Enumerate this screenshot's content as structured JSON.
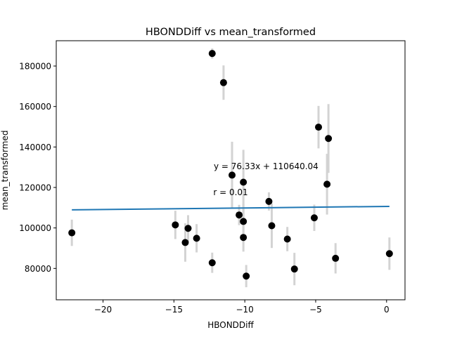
{
  "chart_data": {
    "type": "scatter",
    "title": "HBONDDiff vs mean_transformed",
    "xlabel": "HBONDDiff",
    "ylabel": "mean_transformed",
    "xlim": [
      -23.3,
      1.3
    ],
    "ylim": [
      64500,
      192500
    ],
    "xticks": [
      -20,
      -15,
      -10,
      -5,
      0
    ],
    "xtick_labels": [
      "−20",
      "−15",
      "−10",
      "−5",
      "0"
    ],
    "yticks": [
      80000,
      100000,
      120000,
      140000,
      160000,
      180000
    ],
    "ytick_labels": [
      "80000",
      "100000",
      "120000",
      "140000",
      "160000",
      "180000"
    ],
    "grid": false,
    "points": [
      {
        "x": -22.2,
        "y": 97600,
        "err": 6500
      },
      {
        "x": -14.9,
        "y": 101500,
        "err": 7000
      },
      {
        "x": -14.2,
        "y": 92800,
        "err": 9500
      },
      {
        "x": -14.0,
        "y": 99800,
        "err": 6500
      },
      {
        "x": -13.4,
        "y": 94900,
        "err": 7000
      },
      {
        "x": -12.3,
        "y": 186200,
        "err": 2500
      },
      {
        "x": -12.3,
        "y": 82800,
        "err": 5000
      },
      {
        "x": -11.5,
        "y": 171800,
        "err": 8500
      },
      {
        "x": -10.9,
        "y": 126100,
        "err": 16500
      },
      {
        "x": -10.4,
        "y": 106400,
        "err": 5000
      },
      {
        "x": -10.1,
        "y": 122600,
        "err": 16000
      },
      {
        "x": -10.1,
        "y": 103200,
        "err": 8500
      },
      {
        "x": -10.1,
        "y": 95300,
        "err": 7000
      },
      {
        "x": -9.9,
        "y": 76200,
        "err": 5500
      },
      {
        "x": -8.3,
        "y": 113100,
        "err": 4500
      },
      {
        "x": -8.1,
        "y": 101100,
        "err": 11000
      },
      {
        "x": -7.0,
        "y": 94500,
        "err": 6000
      },
      {
        "x": -6.5,
        "y": 79700,
        "err": 8000
      },
      {
        "x": -5.1,
        "y": 105000,
        "err": 6500
      },
      {
        "x": -4.8,
        "y": 149800,
        "err": 10500
      },
      {
        "x": -4.2,
        "y": 121600,
        "err": 15000
      },
      {
        "x": -4.1,
        "y": 144200,
        "err": 17000
      },
      {
        "x": -3.6,
        "y": 85000,
        "err": 7500
      },
      {
        "x": 0.2,
        "y": 87300,
        "err": 8000
      }
    ],
    "fit_line": {
      "slope": 76.33,
      "intercept": 110640.04,
      "x_range": [
        -22.2,
        0.2
      ]
    },
    "annotations": [
      {
        "text": "y = 76.33x + 110640.04",
        "x": -8.5,
        "y": 129000
      },
      {
        "text": "r = 0.01",
        "x": -11.0,
        "y": 116200
      }
    ],
    "colors": {
      "points": "#000000",
      "errorbars": "#d3d3d3",
      "fit_line": "#1f77b4"
    }
  }
}
